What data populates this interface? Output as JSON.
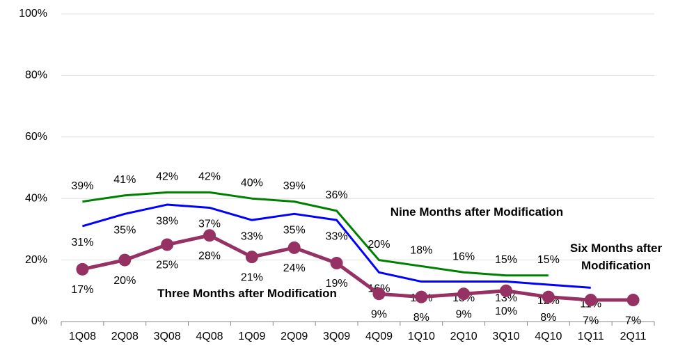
{
  "chart_data": {
    "type": "line",
    "categories": [
      "1Q08",
      "2Q08",
      "3Q08",
      "4Q08",
      "1Q09",
      "2Q09",
      "3Q09",
      "4Q09",
      "1Q10",
      "2Q10",
      "3Q10",
      "4Q10",
      "1Q11",
      "2Q11"
    ],
    "ylim": [
      0,
      100
    ],
    "yticks": [
      {
        "value": 0,
        "label": "0%"
      },
      {
        "value": 20,
        "label": "20%"
      },
      {
        "value": 40,
        "label": "40%"
      },
      {
        "value": 60,
        "label": "60%"
      },
      {
        "value": 80,
        "label": "80%"
      },
      {
        "value": 100,
        "label": "100%"
      }
    ],
    "grid": true,
    "series": [
      {
        "name": "Nine Months after Modification",
        "color": "#008000",
        "values": [
          39,
          41,
          42,
          42,
          40,
          39,
          36,
          20,
          18,
          16,
          15,
          15,
          null,
          null
        ],
        "value_labels": [
          "39%",
          "41%",
          "42%",
          "42%",
          "40%",
          "39%",
          "36%",
          "20%",
          "18%",
          "16%",
          "15%",
          "15%",
          null,
          null
        ]
      },
      {
        "name": "Six Months after Modification",
        "color": "#0000ff",
        "values": [
          31,
          35,
          38,
          37,
          33,
          35,
          33,
          16,
          13,
          13,
          13,
          12,
          11,
          null
        ],
        "value_labels": [
          "31%",
          "35%",
          "38%",
          "37%",
          "33%",
          "35%",
          "33%",
          "16%",
          "13%",
          "13%",
          "13%",
          "12%",
          "11%",
          null
        ]
      },
      {
        "name": "Three Months after Modification",
        "color": "#953163",
        "values": [
          17,
          20,
          25,
          28,
          21,
          24,
          19,
          9,
          8,
          9,
          10,
          8,
          7,
          7
        ],
        "value_labels": [
          "17%",
          "20%",
          "25%",
          "28%",
          "21%",
          "24%",
          "19%",
          "9%",
          "8%",
          "9%",
          "10%",
          "8%",
          "7%",
          "7%"
        ]
      }
    ]
  }
}
